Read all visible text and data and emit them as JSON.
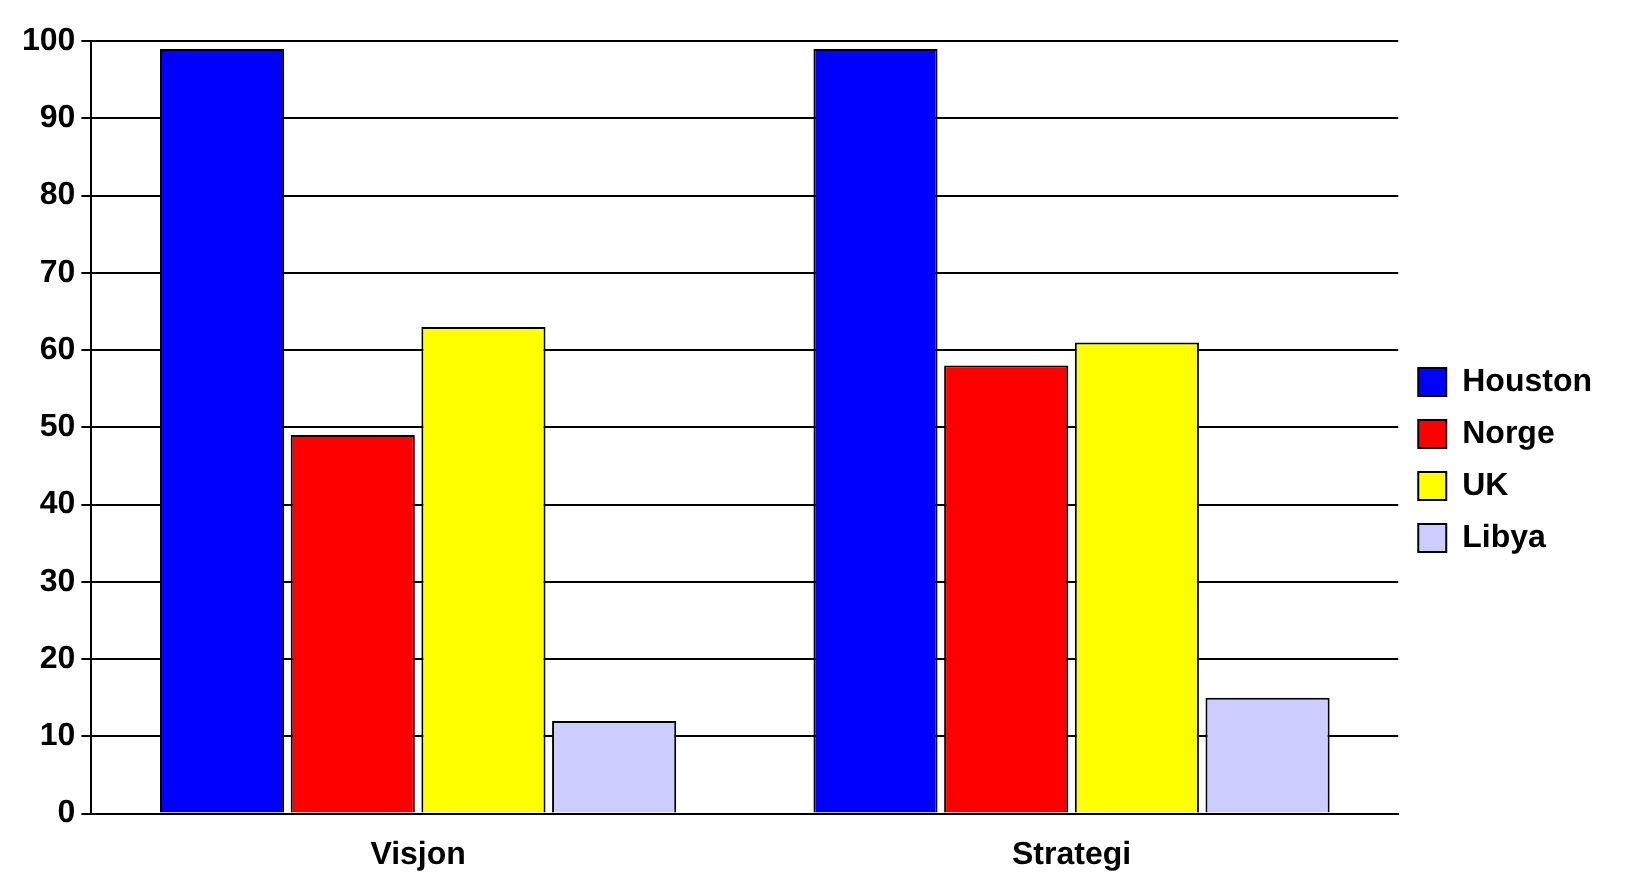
{
  "chart_data": {
    "type": "bar",
    "categories": [
      "Visjon",
      "Strategi"
    ],
    "series": [
      {
        "name": "Houston",
        "color": "#0000ff",
        "values": [
          99,
          99
        ]
      },
      {
        "name": "Norge",
        "color": "#ff0000",
        "values": [
          49,
          58
        ]
      },
      {
        "name": "UK",
        "color": "#ffff00",
        "values": [
          63,
          61
        ]
      },
      {
        "name": "Libya",
        "color": "#ccccff",
        "values": [
          12,
          15
        ]
      }
    ],
    "ylim": [
      0,
      100
    ],
    "yticks": [
      0,
      10,
      20,
      30,
      40,
      50,
      60,
      70,
      80,
      90,
      100
    ],
    "grid": "y",
    "legend": "right"
  }
}
